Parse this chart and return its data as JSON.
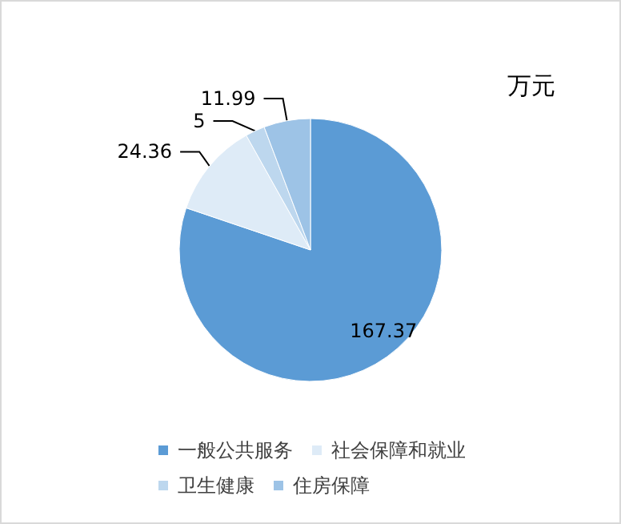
{
  "chart_data": {
    "type": "pie",
    "categories": [
      "一般公共服务",
      "社会保障和就业",
      "卫生健康",
      "住房保障"
    ],
    "values": [
      167.37,
      24.36,
      5,
      11.99
    ],
    "colors": [
      "#5b9bd5",
      "#deebf7",
      "#bdd7ee",
      "#9dc3e6"
    ],
    "annotations": [
      "万元"
    ],
    "data_labels": true,
    "legend": "bottom"
  }
}
